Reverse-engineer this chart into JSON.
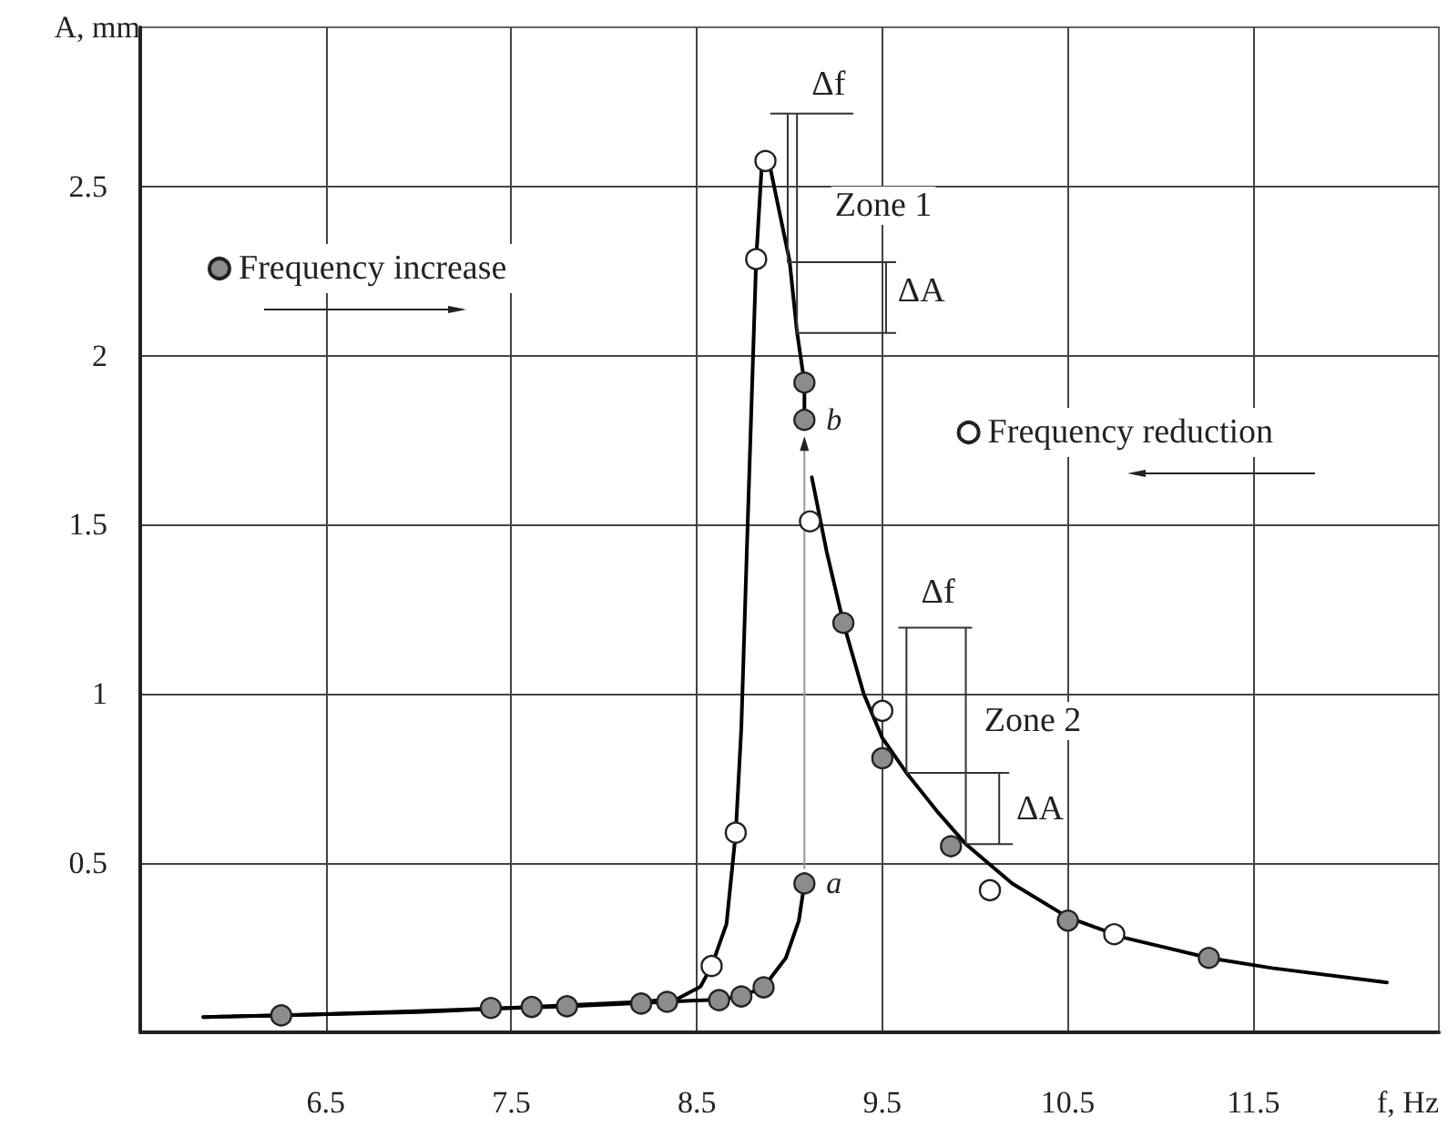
{
  "chart_data": {
    "type": "scatter",
    "xlabel": "f, Hz",
    "ylabel": "A, mm",
    "xlim": [
      5.5,
      12.5
    ],
    "ylim": [
      0,
      2.97
    ],
    "xticks": [
      6.5,
      7.5,
      8.5,
      9.5,
      10.5,
      11.5
    ],
    "yticks": [
      0.5,
      1.0,
      1.5,
      2.0,
      2.5
    ],
    "grid": true,
    "legend": "left",
    "marker": "circle",
    "series": [
      {
        "type": "line",
        "marker": "none",
        "color": "#000000",
        "x": [
          5.84,
          6.26,
          7.39,
          7.8,
          8.34,
          8.62,
          8.74,
          8.86,
          8.98,
          9.05,
          9.08
        ],
        "values": [
          0.045,
          0.05,
          0.07,
          0.077,
          0.09,
          0.097,
          0.107,
          0.133,
          0.22,
          0.33,
          0.44
        ]
      },
      {
        "type": "line",
        "marker": "none",
        "color": "#000000",
        "x": [
          5.84,
          7.0,
          7.8,
          8.2,
          8.4,
          8.52,
          8.58,
          8.66,
          8.71,
          8.74,
          8.77,
          8.82,
          8.85,
          8.89,
          9.0,
          9.04,
          9.08,
          9.08
        ],
        "values": [
          0.045,
          0.06,
          0.08,
          0.09,
          0.1,
          0.135,
          0.196,
          0.32,
          0.59,
          0.9,
          1.43,
          2.285,
          2.56,
          2.57,
          2.28,
          2.07,
          1.92,
          1.81
        ]
      },
      {
        "type": "line",
        "marker": "none",
        "color": "#000000",
        "x": [
          9.12,
          9.2,
          9.29,
          9.4,
          9.5,
          9.63,
          9.8,
          9.95,
          10.2,
          10.5,
          10.8,
          11.26,
          11.6,
          12.22
        ],
        "values": [
          1.64,
          1.42,
          1.21,
          1.0,
          0.87,
          0.767,
          0.65,
          0.556,
          0.44,
          0.34,
          0.28,
          0.22,
          0.19,
          0.147
        ]
      },
      {
        "type": "line",
        "marker": "none",
        "color": "#333333",
        "x": [
          8.99,
          8.99,
          null,
          9.04,
          9.04,
          null,
          8.9,
          9.34,
          null,
          8.99,
          9.57,
          null,
          9.04,
          9.57,
          null,
          9.52,
          9.52
        ],
        "values": [
          2.276,
          2.715,
          null,
          2.067,
          2.715,
          null,
          2.715,
          2.715,
          null,
          2.276,
          2.276,
          null,
          2.067,
          2.067,
          null,
          2.067,
          2.276
        ]
      },
      {
        "type": "line",
        "marker": "none",
        "color": "#333333",
        "x": [
          9.63,
          9.63,
          null,
          9.95,
          9.95,
          null,
          9.59,
          9.98,
          null,
          9.63,
          10.18,
          null,
          9.95,
          10.2,
          null,
          10.13,
          10.13
        ],
        "values": [
          0.767,
          1.196,
          null,
          0.556,
          1.196,
          null,
          1.196,
          1.196,
          null,
          0.767,
          0.767,
          null,
          0.556,
          0.556,
          null,
          0.556,
          0.767
        ]
      },
      {
        "name": "Frequency increase",
        "color": "#8c8c8c",
        "x": [
          6.26,
          7.39,
          7.61,
          7.8,
          8.2,
          8.34,
          8.62,
          8.74,
          8.86,
          9.08,
          9.08,
          9.08,
          9.29,
          9.5,
          9.87,
          10.5,
          11.26
        ],
        "values": [
          0.05,
          0.072,
          0.075,
          0.077,
          0.085,
          0.09,
          0.095,
          0.106,
          0.133,
          0.44,
          1.92,
          1.81,
          1.21,
          0.81,
          0.55,
          0.33,
          0.22
        ]
      },
      {
        "name": "Frequency reduction",
        "color": "#ffffff",
        "x": [
          8.87,
          8.82,
          9.11,
          8.71,
          8.58,
          9.5,
          10.08,
          10.75
        ],
        "values": [
          2.575,
          2.285,
          1.51,
          0.59,
          0.196,
          0.95,
          0.42,
          0.29
        ]
      }
    ],
    "annotations": [
      {
        "text": "Δf",
        "x": 9.21,
        "y": 2.8
      },
      "Zone 1",
      {
        "text": "ΔA",
        "x": 9.71,
        "y": 2.19
      },
      {
        "text": "a",
        "x": 9.08,
        "y": 0.44
      },
      {
        "text": "b",
        "x": 9.08,
        "y": 1.81
      },
      {
        "text": "Δf",
        "x": 9.8,
        "y": 1.3
      },
      "Zone 2",
      {
        "text": "ΔA",
        "x": 10.35,
        "y": 0.66
      }
    ]
  }
}
